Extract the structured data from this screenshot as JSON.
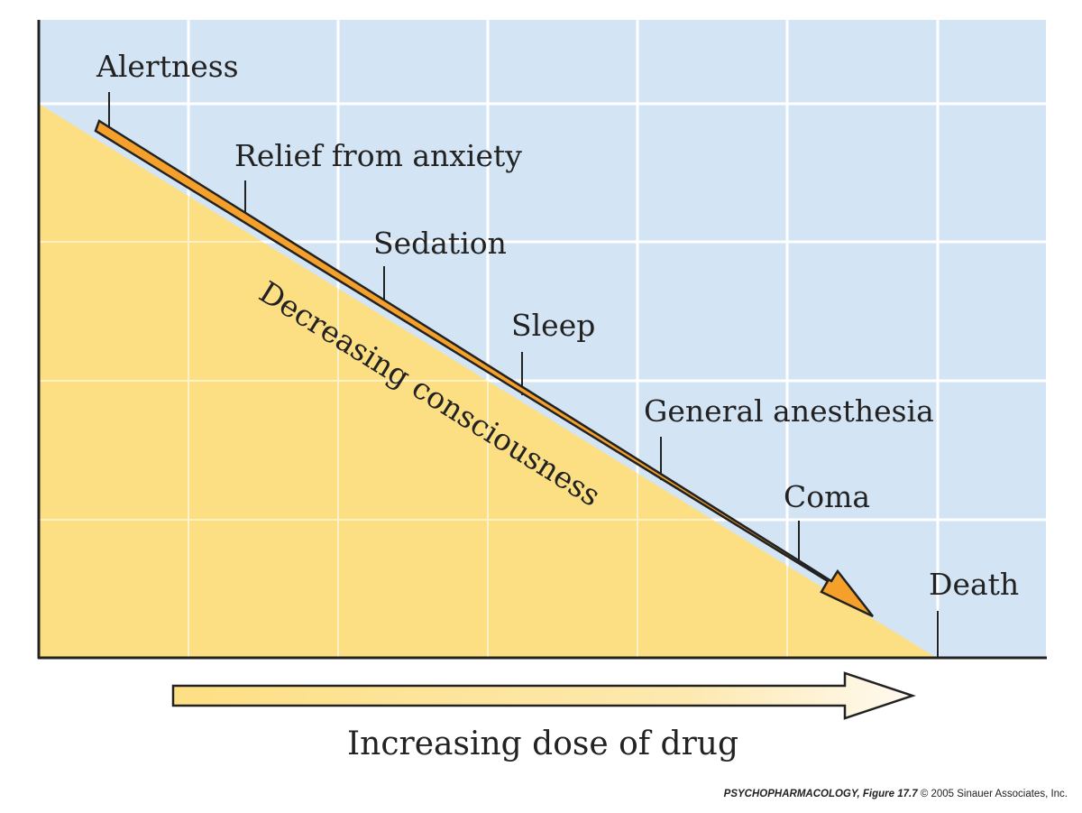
{
  "stages": [
    {
      "id": "alertness",
      "label": "Alertness"
    },
    {
      "id": "relief-from-anxiety",
      "label": "Relief from anxiety"
    },
    {
      "id": "sedation",
      "label": "Sedation"
    },
    {
      "id": "sleep",
      "label": "Sleep"
    },
    {
      "id": "general-anesthesia",
      "label": "General anesthesia"
    },
    {
      "id": "coma",
      "label": "Coma"
    },
    {
      "id": "death",
      "label": "Death"
    }
  ],
  "diagonal_label": "Decreasing consciousness",
  "x_axis_label": "Increasing dose of drug",
  "caption": {
    "title": "PSYCHOPHARMACOLOGY, Figure 17.7",
    "copyright": "© 2005 Sinauer Associates, Inc."
  },
  "colors": {
    "sky": "#d3e4f5",
    "fill": "#fddf83",
    "arrow": "#f5a02a",
    "grid": "#ffffff",
    "axis": "#222222"
  }
}
